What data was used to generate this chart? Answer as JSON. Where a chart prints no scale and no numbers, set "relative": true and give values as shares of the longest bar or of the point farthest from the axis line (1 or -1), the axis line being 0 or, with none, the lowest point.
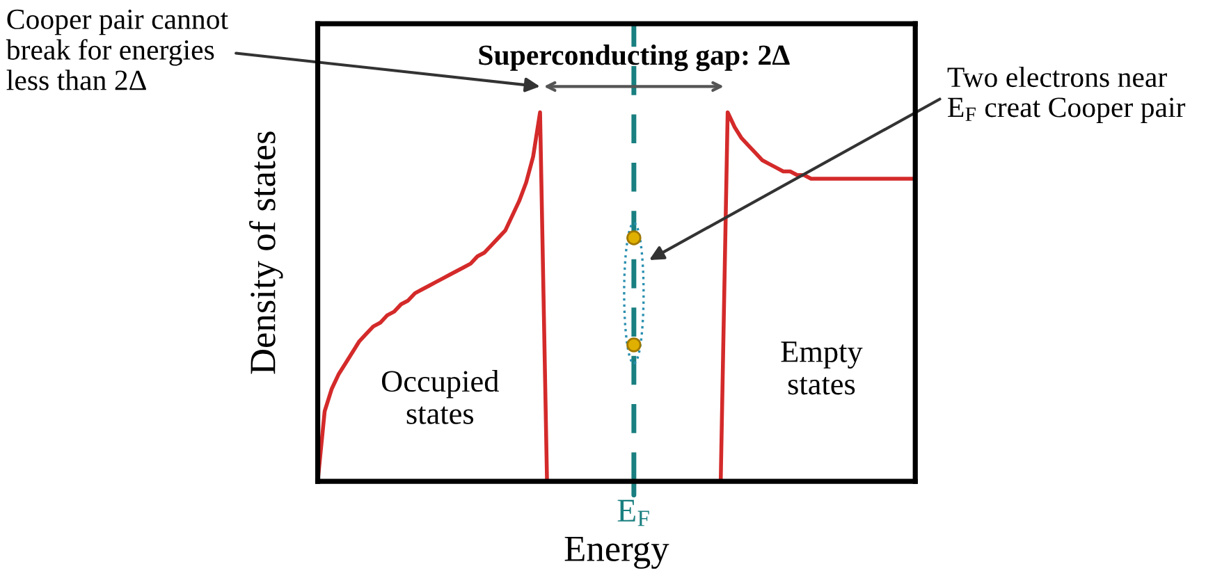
{
  "chart_data": {
    "type": "line",
    "relative": true,
    "xlabel": "Energy",
    "ylabel": "Density of states",
    "marker": "none",
    "line_style": "solid",
    "categories": [
      null,
      null,
      null,
      null,
      null,
      null,
      null,
      null,
      null,
      null,
      null,
      null,
      null,
      null,
      null,
      null,
      null,
      null,
      null,
      null,
      null,
      null,
      null,
      null,
      null,
      null,
      null,
      null,
      null,
      null,
      null,
      null,
      null,
      null,
      null,
      null,
      null,
      null,
      null,
      null,
      null,
      null,
      null,
      null,
      null,
      null,
      null,
      null,
      null,
      null,
      null,
      null,
      null,
      null,
      null,
      null,
      null,
      null,
      null,
      null,
      null,
      null,
      null,
      null,
      null,
      null,
      null,
      null,
      null,
      null,
      null,
      null,
      null,
      null,
      null,
      null,
      null,
      null,
      null,
      null,
      null,
      null,
      null,
      null,
      null,
      null,
      null
    ],
    "series": [
      {
        "color": "#d42a2a",
        "values": [
          0,
          0.19,
          0.25,
          0.29,
          0.32,
          0.35,
          0.38,
          0.4,
          0.42,
          0.43,
          0.45,
          0.46,
          0.48,
          0.49,
          0.51,
          0.52,
          0.53,
          0.54,
          0.55,
          0.56,
          0.57,
          0.58,
          0.59,
          0.61,
          0.62,
          0.64,
          0.66,
          0.68,
          0.72,
          0.76,
          0.81,
          0.88,
          1.0,
          0,
          0,
          0,
          0,
          0,
          0,
          0,
          0,
          0,
          0,
          0,
          0,
          0,
          0,
          0,
          0,
          0,
          0,
          0,
          0,
          0,
          0,
          0,
          0,
          0,
          0,
          1.0,
          0.96,
          0.93,
          0.91,
          0.89,
          0.87,
          0.86,
          0.85,
          0.84,
          0.84,
          0.83,
          0.83,
          0.82,
          0.82,
          0.82,
          0.82,
          0.82,
          0.82,
          0.82,
          0.82,
          0.82,
          0.82,
          0.82,
          0.82,
          0.82,
          0.82,
          0.82,
          0.82
        ]
      }
    ],
    "annotations": [
      "Cooper pair cannot\nbreak for energies\nless than 2Δ",
      "Superconducting gap: 2Δ",
      "Two electrons near\nE$_{F}$ creat Cooper pair",
      "Occupied\nstates",
      "Empty\nstates",
      "E$_{F}$"
    ]
  }
}
